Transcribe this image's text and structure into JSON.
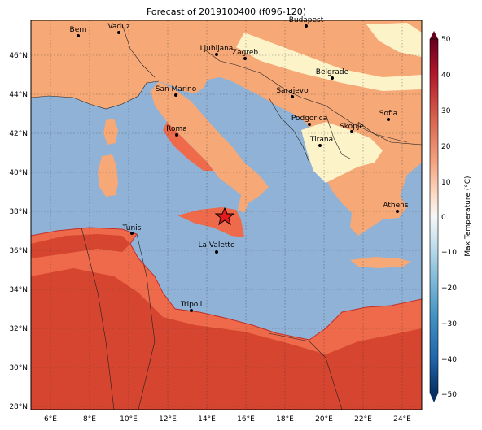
{
  "title": "Forecast of 2019100400 (f096-120)",
  "map": {
    "lon_ticks": [
      "6°E",
      "8°E",
      "10°E",
      "12°E",
      "14°E",
      "16°E",
      "18°E",
      "20°E",
      "22°E",
      "24°E"
    ],
    "lat_ticks": [
      "46°N",
      "44°N",
      "42°N",
      "40°N",
      "38°N",
      "36°N",
      "34°N",
      "32°N",
      "30°N",
      "28°N"
    ],
    "cities": [
      {
        "name": "Bern"
      },
      {
        "name": "Vaduz"
      },
      {
        "name": "Budapest"
      },
      {
        "name": "Ljubljana"
      },
      {
        "name": "Zagreb"
      },
      {
        "name": "Belgrade"
      },
      {
        "name": "San Marino"
      },
      {
        "name": "Sarajevo"
      },
      {
        "name": "Sofia"
      },
      {
        "name": "Podgorica"
      },
      {
        "name": "Skopje"
      },
      {
        "name": "Roma"
      },
      {
        "name": "Tirana"
      },
      {
        "name": "Athens"
      },
      {
        "name": "Tunis"
      },
      {
        "name": "La Valette"
      },
      {
        "name": "Tripoli"
      }
    ]
  },
  "colorbar": {
    "label": "Max Temperature (°C)",
    "ticks": [
      "50",
      "40",
      "30",
      "20",
      "10",
      "0",
      "−10",
      "−20",
      "−30",
      "−40",
      "−50"
    ],
    "colors": [
      "#67001f",
      "#b2182b",
      "#d6604d",
      "#f4a582",
      "#fddbc7",
      "#f7f7f7",
      "#d1e5f0",
      "#92c5de",
      "#4393c3",
      "#2166ac",
      "#053061"
    ]
  },
  "colors": {
    "sea": "#8fb2d6",
    "land_warm": "#f6a877",
    "land_cool": "#fdf3c9",
    "land_hot": "#ee6a4a",
    "land_hotter": "#d6452f"
  },
  "marker": {
    "name": "star-marker"
  }
}
